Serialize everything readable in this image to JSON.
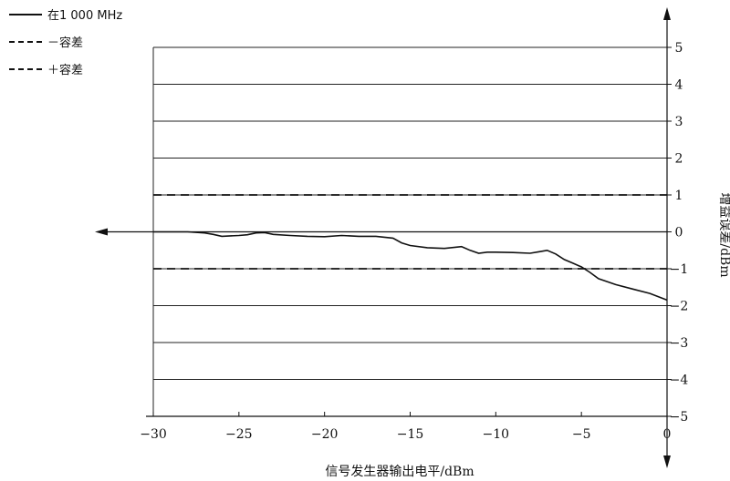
{
  "legend": [
    {
      "label": "在1 000 MHz",
      "style": "solid"
    },
    {
      "label": "－容差",
      "style": "dashed"
    },
    {
      "label": "＋容差",
      "style": "dashed"
    }
  ],
  "chart_data": {
    "type": "line",
    "xlabel": "信号发生器输出电平/dBm",
    "ylabel": "增益误差/dBm",
    "xlim": [
      -30,
      0
    ],
    "ylim": [
      -5,
      5
    ],
    "x_ticks": [
      -30,
      -25,
      -20,
      -15,
      -10,
      -5,
      0
    ],
    "x_tick_labels": [
      "−30",
      "−25",
      "−20",
      "−15",
      "−10",
      "−5",
      "0"
    ],
    "y_ticks": [
      5,
      4,
      3,
      2,
      1,
      0,
      -1,
      -2,
      -3,
      -4,
      -5
    ],
    "y_tick_labels": [
      "5",
      "4",
      "3",
      "2",
      "1",
      "0",
      "−1",
      "−2",
      "−3",
      "−4",
      "−5"
    ],
    "grid": "horizontal",
    "legend_position": "top-left",
    "series": [
      {
        "name": "在1 000 MHz",
        "style": "solid",
        "x": [
          -30,
          -28,
          -27,
          -26.5,
          -26,
          -25,
          -24.5,
          -24,
          -23.5,
          -23,
          -22,
          -21,
          -20,
          -19,
          -18,
          -17,
          -16,
          -15.5,
          -15,
          -14,
          -13,
          -12,
          -11.5,
          -11,
          -10.5,
          -10,
          -9,
          -8,
          -7.5,
          -7,
          -6.5,
          -6,
          -5.5,
          -5,
          -4.5,
          -4,
          -3,
          -2,
          -1,
          0
        ],
        "values": [
          0,
          0,
          -0.03,
          -0.07,
          -0.12,
          -0.1,
          -0.08,
          -0.03,
          -0.02,
          -0.07,
          -0.1,
          -0.12,
          -0.13,
          -0.1,
          -0.12,
          -0.12,
          -0.17,
          -0.3,
          -0.37,
          -0.43,
          -0.45,
          -0.4,
          -0.5,
          -0.58,
          -0.55,
          -0.55,
          -0.56,
          -0.58,
          -0.54,
          -0.5,
          -0.6,
          -0.75,
          -0.85,
          -0.95,
          -1.1,
          -1.27,
          -1.43,
          -1.55,
          -1.67,
          -1.85
        ]
      },
      {
        "name": "＋容差",
        "style": "dashed",
        "x": [
          -30,
          0
        ],
        "values": [
          1,
          1
        ]
      },
      {
        "name": "－容差",
        "style": "dashed",
        "x": [
          -30,
          0
        ],
        "values": [
          -1,
          -1
        ]
      }
    ]
  }
}
